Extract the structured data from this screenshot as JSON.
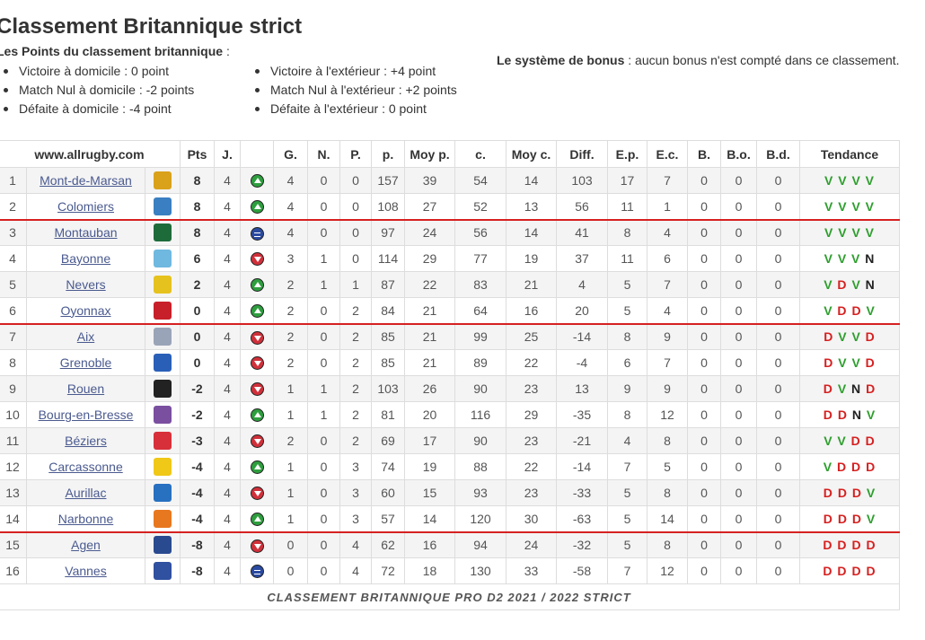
{
  "page": {
    "title": "Classement Britannique strict",
    "points_heading": "Les Points du classement britannique",
    "points_heading_suffix": " :",
    "rules_col1": [
      "Victoire à domicile : 0 point",
      "Match Nul à domicile : -2 points",
      "Défaite à domicile : -4 point"
    ],
    "rules_col2": [
      "Victoire à l'extérieur : +4 point",
      "Match Nul à l'extérieur : +2 points",
      "Défaite à l'extérieur : 0 point"
    ],
    "bonus_label": "Le système de bonus",
    "bonus_text": " : aucun bonus n'est compté dans ce classement."
  },
  "table": {
    "site": "www.allrugby.com",
    "headers": [
      "Pts",
      "J.",
      "",
      "G.",
      "N.",
      "P.",
      "p.",
      "Moy p.",
      "c.",
      "Moy c.",
      "Diff.",
      "E.p.",
      "E.c.",
      "B.",
      "B.o.",
      "B.d.",
      "Tendance"
    ],
    "footer": "CLASSEMENT BRITANNIQUE PRO D2 2021 / 2022 STRICT",
    "rows": [
      {
        "pos": "1",
        "team": "Mont-de-Marsan",
        "logo": "#d9a21a",
        "pts": "8",
        "j": "4",
        "trend": "up",
        "g": "4",
        "n": "0",
        "p": "0",
        "pp": "157",
        "moyp": "39",
        "c": "54",
        "moyc": "14",
        "diff": "103",
        "ep": "17",
        "ec": "7",
        "b": "0",
        "bo": "0",
        "bd": "0",
        "tendance": "VVVV",
        "sep": false
      },
      {
        "pos": "2",
        "team": "Colomiers",
        "logo": "#3a7fc1",
        "pts": "8",
        "j": "4",
        "trend": "up",
        "g": "4",
        "n": "0",
        "p": "0",
        "pp": "108",
        "moyp": "27",
        "c": "52",
        "moyc": "13",
        "diff": "56",
        "ep": "11",
        "ec": "1",
        "b": "0",
        "bo": "0",
        "bd": "0",
        "tendance": "VVVV",
        "sep": true
      },
      {
        "pos": "3",
        "team": "Montauban",
        "logo": "#1e6b3a",
        "pts": "8",
        "j": "4",
        "trend": "same",
        "g": "4",
        "n": "0",
        "p": "0",
        "pp": "97",
        "moyp": "24",
        "c": "56",
        "moyc": "14",
        "diff": "41",
        "ep": "8",
        "ec": "4",
        "b": "0",
        "bo": "0",
        "bd": "0",
        "tendance": "VVVV",
        "sep": false
      },
      {
        "pos": "4",
        "team": "Bayonne",
        "logo": "#6fb8e0",
        "pts": "6",
        "j": "4",
        "trend": "down",
        "g": "3",
        "n": "1",
        "p": "0",
        "pp": "114",
        "moyp": "29",
        "c": "77",
        "moyc": "19",
        "diff": "37",
        "ep": "11",
        "ec": "6",
        "b": "0",
        "bo": "0",
        "bd": "0",
        "tendance": "VVVN",
        "sep": false
      },
      {
        "pos": "5",
        "team": "Nevers",
        "logo": "#e6c21e",
        "pts": "2",
        "j": "4",
        "trend": "up",
        "g": "2",
        "n": "1",
        "p": "1",
        "pp": "87",
        "moyp": "22",
        "c": "83",
        "moyc": "21",
        "diff": "4",
        "ep": "5",
        "ec": "7",
        "b": "0",
        "bo": "0",
        "bd": "0",
        "tendance": "VDVN",
        "sep": false
      },
      {
        "pos": "6",
        "team": "Oyonnax",
        "logo": "#c8202a",
        "pts": "0",
        "j": "4",
        "trend": "up",
        "g": "2",
        "n": "0",
        "p": "2",
        "pp": "84",
        "moyp": "21",
        "c": "64",
        "moyc": "16",
        "diff": "20",
        "ep": "5",
        "ec": "4",
        "b": "0",
        "bo": "0",
        "bd": "0",
        "tendance": "VDDV",
        "sep": true
      },
      {
        "pos": "7",
        "team": "Aix",
        "logo": "#9aa4b8",
        "pts": "0",
        "j": "4",
        "trend": "down",
        "g": "2",
        "n": "0",
        "p": "2",
        "pp": "85",
        "moyp": "21",
        "c": "99",
        "moyc": "25",
        "diff": "-14",
        "ep": "8",
        "ec": "9",
        "b": "0",
        "bo": "0",
        "bd": "0",
        "tendance": "DVVD",
        "sep": false
      },
      {
        "pos": "8",
        "team": "Grenoble",
        "logo": "#2a5fb8",
        "pts": "0",
        "j": "4",
        "trend": "down",
        "g": "2",
        "n": "0",
        "p": "2",
        "pp": "85",
        "moyp": "21",
        "c": "89",
        "moyc": "22",
        "diff": "-4",
        "ep": "6",
        "ec": "7",
        "b": "0",
        "bo": "0",
        "bd": "0",
        "tendance": "DVVD",
        "sep": false
      },
      {
        "pos": "9",
        "team": "Rouen",
        "logo": "#222222",
        "pts": "-2",
        "j": "4",
        "trend": "down",
        "g": "1",
        "n": "1",
        "p": "2",
        "pp": "103",
        "moyp": "26",
        "c": "90",
        "moyc": "23",
        "diff": "13",
        "ep": "9",
        "ec": "9",
        "b": "0",
        "bo": "0",
        "bd": "0",
        "tendance": "DVND",
        "sep": false
      },
      {
        "pos": "10",
        "team": "Bourg-en-Bresse",
        "logo": "#7a4fa0",
        "pts": "-2",
        "j": "4",
        "trend": "up",
        "g": "1",
        "n": "1",
        "p": "2",
        "pp": "81",
        "moyp": "20",
        "c": "116",
        "moyc": "29",
        "diff": "-35",
        "ep": "8",
        "ec": "12",
        "b": "0",
        "bo": "0",
        "bd": "0",
        "tendance": "DDNV",
        "sep": false
      },
      {
        "pos": "11",
        "team": "Béziers",
        "logo": "#d8303a",
        "pts": "-3",
        "j": "4",
        "trend": "down",
        "g": "2",
        "n": "0",
        "p": "2",
        "pp": "69",
        "moyp": "17",
        "c": "90",
        "moyc": "23",
        "diff": "-21",
        "ep": "4",
        "ec": "8",
        "b": "0",
        "bo": "0",
        "bd": "0",
        "tendance": "VVDD",
        "sep": false
      },
      {
        "pos": "12",
        "team": "Carcassonne",
        "logo": "#f0c818",
        "pts": "-4",
        "j": "4",
        "trend": "up",
        "g": "1",
        "n": "0",
        "p": "3",
        "pp": "74",
        "moyp": "19",
        "c": "88",
        "moyc": "22",
        "diff": "-14",
        "ep": "7",
        "ec": "5",
        "b": "0",
        "bo": "0",
        "bd": "0",
        "tendance": "VDDD",
        "sep": false
      },
      {
        "pos": "13",
        "team": "Aurillac",
        "logo": "#2870c0",
        "pts": "-4",
        "j": "4",
        "trend": "down",
        "g": "1",
        "n": "0",
        "p": "3",
        "pp": "60",
        "moyp": "15",
        "c": "93",
        "moyc": "23",
        "diff": "-33",
        "ep": "5",
        "ec": "8",
        "b": "0",
        "bo": "0",
        "bd": "0",
        "tendance": "DDDV",
        "sep": false
      },
      {
        "pos": "14",
        "team": "Narbonne",
        "logo": "#e87820",
        "pts": "-4",
        "j": "4",
        "trend": "up",
        "g": "1",
        "n": "0",
        "p": "3",
        "pp": "57",
        "moyp": "14",
        "c": "120",
        "moyc": "30",
        "diff": "-63",
        "ep": "5",
        "ec": "14",
        "b": "0",
        "bo": "0",
        "bd": "0",
        "tendance": "DDDV",
        "sep": true
      },
      {
        "pos": "15",
        "team": "Agen",
        "logo": "#2a4a90",
        "pts": "-8",
        "j": "4",
        "trend": "down",
        "g": "0",
        "n": "0",
        "p": "4",
        "pp": "62",
        "moyp": "16",
        "c": "94",
        "moyc": "24",
        "diff": "-32",
        "ep": "5",
        "ec": "8",
        "b": "0",
        "bo": "0",
        "bd": "0",
        "tendance": "DDDD",
        "sep": false
      },
      {
        "pos": "16",
        "team": "Vannes",
        "logo": "#3050a0",
        "pts": "-8",
        "j": "4",
        "trend": "same",
        "g": "0",
        "n": "0",
        "p": "4",
        "pp": "72",
        "moyp": "18",
        "c": "130",
        "moyc": "33",
        "diff": "-58",
        "ep": "7",
        "ec": "12",
        "b": "0",
        "bo": "0",
        "bd": "0",
        "tendance": "DDDD",
        "sep": false
      }
    ]
  }
}
